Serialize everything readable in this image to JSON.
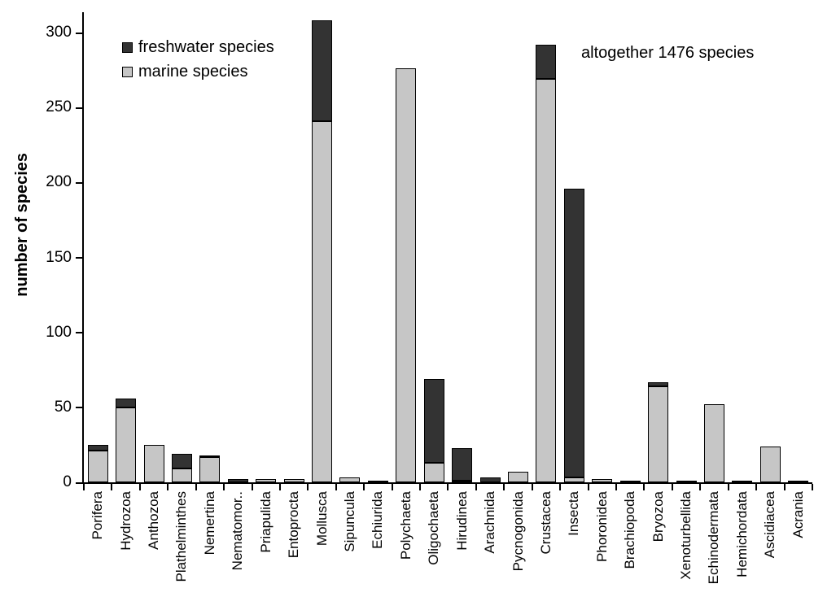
{
  "chart_data": {
    "type": "bar",
    "stacked": true,
    "ylabel": "number of species",
    "annotation": "altogether 1476 species",
    "ylim": [
      0,
      300
    ],
    "ytick_step": 50,
    "ytick_labels": [
      "0",
      "50",
      "100",
      "150",
      "200",
      "250",
      "300"
    ],
    "grid": false,
    "legend_position": "top-left-inside",
    "legend": [
      "freshwater species",
      "marine species"
    ],
    "colors": {
      "freshwater": "#333333",
      "marine": "#c6c6c6",
      "bar_border": "#000000",
      "axis": "#000000",
      "background": "#ffffff"
    },
    "categories": [
      "Porifera",
      "Hydrozoa",
      "Anthozoa",
      "Plathelminthes",
      "Nemertina",
      "Nematomor..",
      "Priapulida",
      "Entoprocta",
      "Mollusca",
      "Sipuncula",
      "Echiurida",
      "Polychaeta",
      "Oligochaeta",
      "Hirudinea",
      "Arachnida",
      "Pycnogonida",
      "Crustacea",
      "Insecta",
      "Phoronidea",
      "Brachiopoda",
      "Bryozoa",
      "Xenoturbellida",
      "Echinodermata",
      "Hemichordata",
      "Ascidiacea",
      "Acrania"
    ],
    "series": [
      {
        "name": "marine species",
        "values": [
          21,
          50,
          25,
          9,
          17,
          0,
          2,
          2,
          241,
          3,
          1,
          276,
          13,
          1,
          0,
          7,
          269,
          3,
          2,
          1,
          64,
          1,
          52,
          1,
          24,
          1
        ]
      },
      {
        "name": "freshwater species",
        "values": [
          4,
          6,
          0,
          10,
          1,
          2,
          0,
          0,
          67,
          0,
          0,
          0,
          56,
          22,
          3,
          0,
          23,
          193,
          0,
          0,
          3,
          0,
          0,
          0,
          0,
          0
        ]
      }
    ],
    "totals_note": "1476"
  }
}
